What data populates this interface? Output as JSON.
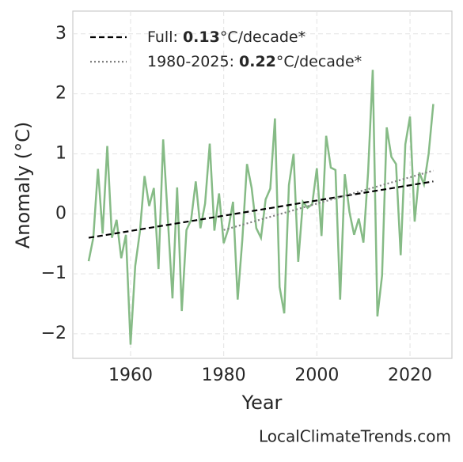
{
  "chart_data": {
    "type": "line",
    "xlabel": "Year",
    "ylabel": "Anomaly (°C)",
    "footer": "LocalClimateTrends.com",
    "x": [
      1951,
      1952,
      1953,
      1954,
      1955,
      1956,
      1957,
      1958,
      1959,
      1960,
      1961,
      1962,
      1963,
      1964,
      1965,
      1966,
      1967,
      1968,
      1969,
      1970,
      1971,
      1972,
      1973,
      1974,
      1975,
      1976,
      1977,
      1978,
      1979,
      1980,
      1981,
      1982,
      1983,
      1984,
      1985,
      1986,
      1987,
      1988,
      1989,
      1990,
      1991,
      1992,
      1993,
      1994,
      1995,
      1996,
      1997,
      1998,
      1999,
      2000,
      2001,
      2002,
      2003,
      2004,
      2005,
      2006,
      2007,
      2008,
      2009,
      2010,
      2011,
      2012,
      2013,
      2014,
      2015,
      2016,
      2017,
      2018,
      2019,
      2020,
      2021,
      2022,
      2023,
      2024,
      2025
    ],
    "values": [
      -0.79,
      -0.4,
      0.75,
      -0.33,
      1.13,
      -0.4,
      -0.1,
      -0.74,
      -0.35,
      -2.18,
      -0.87,
      -0.3,
      0.63,
      0.13,
      0.43,
      -0.92,
      1.24,
      -0.08,
      -1.41,
      0.44,
      -1.62,
      -0.27,
      -0.1,
      0.54,
      -0.24,
      0.17,
      1.17,
      -0.28,
      0.34,
      -0.49,
      -0.25,
      0.2,
      -1.43,
      -0.43,
      0.83,
      0.43,
      -0.24,
      -0.4,
      0.24,
      0.42,
      1.59,
      -1.22,
      -1.66,
      0.48,
      1.0,
      -0.8,
      0.2,
      0.1,
      0.16,
      0.76,
      -0.37,
      1.3,
      0.77,
      0.73,
      -1.43,
      0.66,
      0.03,
      -0.35,
      -0.08,
      -0.48,
      0.69,
      2.4,
      -1.71,
      -1.03,
      1.44,
      0.95,
      0.83,
      -0.69,
      1.16,
      1.62,
      -0.13,
      0.69,
      0.49,
      1.0,
      1.83
    ],
    "color": "#86bb86",
    "trend_lines": [
      {
        "label": "Full: ",
        "rate": "0.13",
        "unit": "°C/decade*",
        "color": "#000000",
        "dash": "7 4",
        "x": [
          1951,
          2025
        ],
        "values": [
          -0.4,
          0.54
        ]
      },
      {
        "label": "1980-2025: ",
        "rate": "0.22",
        "unit": "°C/decade*",
        "color": "#808080",
        "dash": "2 3",
        "x": [
          1980,
          2025
        ],
        "values": [
          -0.27,
          0.72
        ]
      }
    ],
    "xlim": [
      1947.6,
      2029.0
    ],
    "xticks": [
      1960,
      1980,
      2000,
      2020
    ],
    "ylim": [
      -2.41,
      3.38
    ],
    "yticks": [
      {
        "value": -2,
        "label": "−2"
      },
      {
        "value": -1,
        "label": "−1"
      },
      0,
      1,
      2,
      3
    ],
    "grid": true,
    "legend": "upper left"
  }
}
